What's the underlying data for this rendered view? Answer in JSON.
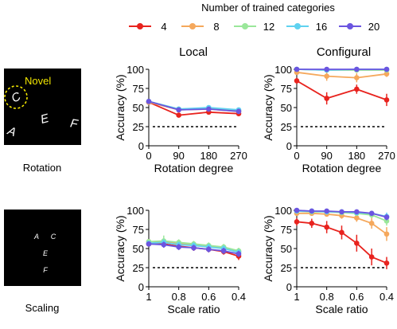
{
  "legend": {
    "title": "Number of trained categories",
    "entries": [
      {
        "label": "4",
        "color": "#e8231e"
      },
      {
        "label": "8",
        "color": "#f5a85c"
      },
      {
        "label": "12",
        "color": "#9ae79a"
      },
      {
        "label": "16",
        "color": "#5fd2f0"
      },
      {
        "label": "20",
        "color": "#6b55e0"
      }
    ]
  },
  "column_titles": {
    "local": "Local",
    "configural": "Configural"
  },
  "examples": {
    "rotation": {
      "label": "Rotation",
      "novel_label": "Novel",
      "letters": [
        "C",
        "A",
        "E",
        "F"
      ]
    },
    "scaling": {
      "label": "Scaling",
      "letters": [
        "A",
        "C",
        "E",
        "F"
      ]
    }
  },
  "chance_level": 25,
  "chart_data": [
    {
      "id": "rotation-local",
      "type": "line",
      "title": "",
      "xlabel": "Rotation degree",
      "ylabel": "Accuracy (%)",
      "x": [
        0,
        90,
        180,
        270
      ],
      "xlim": [
        0,
        270
      ],
      "ylim": [
        0,
        100
      ],
      "xticks": [
        "0",
        "90",
        "180",
        "270"
      ],
      "yticks": [
        "0",
        "25",
        "50",
        "75",
        "100"
      ],
      "series": [
        {
          "name": "4",
          "values": [
            57,
            40,
            44,
            42
          ],
          "err": [
            2,
            3,
            3,
            3
          ]
        },
        {
          "name": "8",
          "values": [
            57,
            47,
            48,
            45
          ],
          "err": [
            2,
            2,
            2,
            2
          ]
        },
        {
          "name": "12",
          "values": [
            58,
            48,
            49,
            46
          ],
          "err": [
            2,
            2,
            2,
            2
          ]
        },
        {
          "name": "16",
          "values": [
            58,
            48,
            50,
            47
          ],
          "err": [
            2,
            2,
            2,
            2
          ]
        },
        {
          "name": "20",
          "values": [
            58,
            47,
            48,
            45
          ],
          "err": [
            2,
            2,
            2,
            2
          ]
        }
      ]
    },
    {
      "id": "rotation-configural",
      "type": "line",
      "title": "",
      "xlabel": "Rotation degree",
      "ylabel": "Accuracy (%)",
      "x": [
        0,
        90,
        180,
        270
      ],
      "xlim": [
        0,
        270
      ],
      "ylim": [
        0,
        100
      ],
      "xticks": [
        "0",
        "90",
        "180",
        "270"
      ],
      "yticks": [
        "0",
        "25",
        "50",
        "75",
        "100"
      ],
      "series": [
        {
          "name": "4",
          "values": [
            85,
            62,
            74,
            60
          ],
          "err": [
            4,
            8,
            6,
            8
          ]
        },
        {
          "name": "8",
          "values": [
            96,
            91,
            89,
            94
          ],
          "err": [
            2,
            6,
            6,
            4
          ]
        },
        {
          "name": "12",
          "values": [
            100,
            99,
            99,
            99
          ],
          "err": [
            0,
            1,
            1,
            1
          ]
        },
        {
          "name": "16",
          "values": [
            100,
            99,
            100,
            100
          ],
          "err": [
            0,
            1,
            0,
            0
          ]
        },
        {
          "name": "20",
          "values": [
            100,
            100,
            100,
            100
          ],
          "err": [
            0,
            0,
            0,
            0
          ]
        }
      ]
    },
    {
      "id": "scaling-local",
      "type": "line",
      "title": "",
      "xlabel": "Scale ratio",
      "ylabel": "Accuracy (%)",
      "x": [
        1.0,
        0.9,
        0.8,
        0.7,
        0.6,
        0.5,
        0.4
      ],
      "xlim": [
        1,
        0.4
      ],
      "ylim": [
        0,
        100
      ],
      "xticks": [
        "1",
        "0.8",
        "0.6",
        "0.4"
      ],
      "xtick_values": [
        1,
        0.8,
        0.6,
        0.4
      ],
      "yticks": [
        "0",
        "25",
        "50",
        "75",
        "100"
      ],
      "series": [
        {
          "name": "4",
          "values": [
            56,
            56,
            53,
            51,
            49,
            46,
            40
          ],
          "err": [
            3,
            4,
            4,
            4,
            4,
            4,
            5
          ]
        },
        {
          "name": "8",
          "values": [
            59,
            59,
            57,
            55,
            53,
            51,
            46
          ],
          "err": [
            3,
            4,
            4,
            4,
            4,
            4,
            4
          ]
        },
        {
          "name": "12",
          "values": [
            59,
            60,
            58,
            56,
            54,
            52,
            47
          ],
          "err": [
            3,
            7,
            4,
            4,
            4,
            4,
            4
          ]
        },
        {
          "name": "16",
          "values": [
            57,
            58,
            55,
            54,
            52,
            50,
            45
          ],
          "err": [
            3,
            4,
            4,
            4,
            4,
            4,
            4
          ]
        },
        {
          "name": "20",
          "values": [
            56,
            55,
            52,
            51,
            49,
            47,
            43
          ],
          "err": [
            3,
            4,
            4,
            4,
            4,
            4,
            4
          ]
        }
      ]
    },
    {
      "id": "scaling-configural",
      "type": "line",
      "title": "",
      "xlabel": "Scale ratio",
      "ylabel": "Accuracy (%)",
      "x": [
        1.0,
        0.9,
        0.8,
        0.7,
        0.6,
        0.5,
        0.4
      ],
      "xlim": [
        1,
        0.4
      ],
      "ylim": [
        0,
        100
      ],
      "xticks": [
        "1",
        "0.8",
        "0.6",
        "0.4"
      ],
      "xtick_values": [
        1,
        0.8,
        0.6,
        0.4
      ],
      "yticks": [
        "0",
        "25",
        "50",
        "75",
        "100"
      ],
      "series": [
        {
          "name": "4",
          "values": [
            85,
            83,
            78,
            71,
            57,
            39,
            31
          ],
          "err": [
            5,
            6,
            8,
            9,
            11,
            11,
            8
          ]
        },
        {
          "name": "8",
          "values": [
            96,
            96,
            95,
            93,
            90,
            83,
            69
          ],
          "err": [
            2,
            3,
            3,
            4,
            5,
            7,
            9
          ]
        },
        {
          "name": "12",
          "values": [
            99,
            98,
            98,
            97,
            96,
            94,
            86
          ],
          "err": [
            1,
            2,
            2,
            2,
            3,
            4,
            6
          ]
        },
        {
          "name": "16",
          "values": [
            99,
            99,
            98,
            98,
            97,
            96,
            92
          ],
          "err": [
            1,
            1,
            2,
            2,
            2,
            3,
            5
          ]
        },
        {
          "name": "20",
          "values": [
            100,
            99,
            99,
            98,
            98,
            96,
            91
          ],
          "err": [
            0,
            1,
            1,
            1,
            2,
            2,
            4
          ]
        }
      ]
    }
  ]
}
